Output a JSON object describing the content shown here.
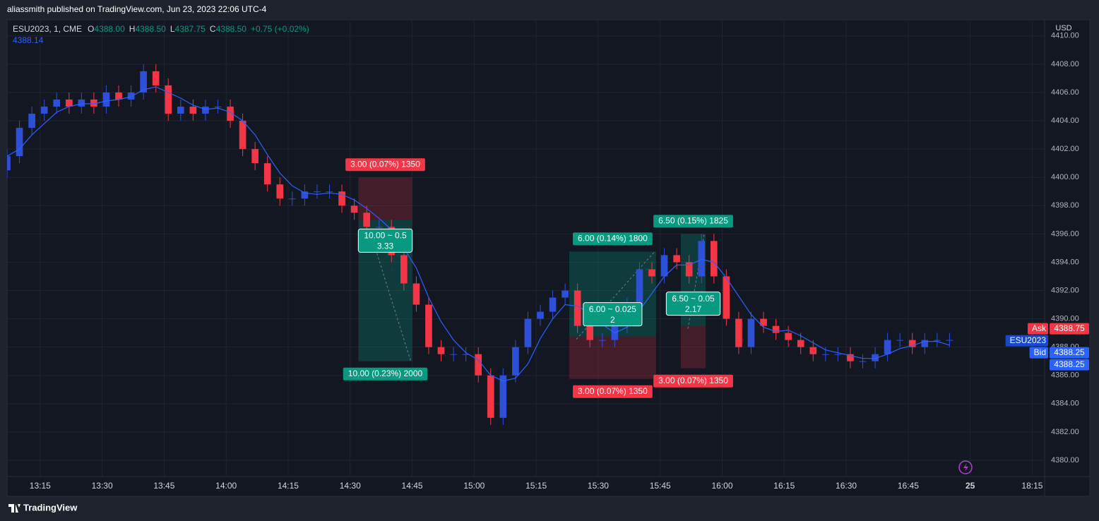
{
  "header": {
    "title": "aliassmith published on TradingView.com, Jun 23, 2023 22:06 UTC-4"
  },
  "footer": {
    "brand": "TradingView"
  },
  "chart_data": {
    "type": "candlestick",
    "legend": {
      "symbol": "ESU2023, 1, CME",
      "ohlc": [
        {
          "label": "O",
          "value": "4388.00"
        },
        {
          "label": "H",
          "value": "4388.50"
        },
        {
          "label": "L",
          "value": "4387.75"
        },
        {
          "label": "C",
          "value": "4388.50"
        }
      ],
      "change": "+0.75 (+0.02%)"
    },
    "axis_unit": "USD",
    "colors": {
      "up": "#2e4fd8",
      "down": "#f23645",
      "ma": "#2962ff",
      "profit": "#089981",
      "loss": "#f23645"
    },
    "grid": true,
    "categories": [
      "13:07",
      "13:10",
      "13:13",
      "13:16",
      "13:19",
      "13:22",
      "13:25",
      "13:28",
      "13:31",
      "13:34",
      "13:37",
      "13:40",
      "13:43",
      "13:46",
      "13:49",
      "13:52",
      "13:55",
      "13:58",
      "14:01",
      "14:04",
      "14:07",
      "14:10",
      "14:13",
      "14:16",
      "14:19",
      "14:22",
      "14:25",
      "14:28",
      "14:31",
      "14:34",
      "14:37",
      "14:40",
      "14:43",
      "14:46",
      "14:49",
      "14:52",
      "14:55",
      "14:58",
      "15:01",
      "15:04",
      "15:07",
      "15:10",
      "15:13",
      "15:16",
      "15:19",
      "15:22",
      "15:25",
      "15:28",
      "15:31",
      "15:34",
      "15:37",
      "15:40",
      "15:43",
      "15:46",
      "15:49",
      "15:52",
      "15:55",
      "15:58",
      "16:01",
      "16:04",
      "16:07",
      "16:10",
      "16:13",
      "16:16",
      "16:19",
      "16:22",
      "16:25",
      "16:28",
      "16:31",
      "16:34",
      "16:37",
      "16:40",
      "16:43",
      "16:46",
      "16:49",
      "16:52",
      "16:55"
    ],
    "open": [
      4400.5,
      4401.5,
      4403.5,
      4404.5,
      4405,
      4405.5,
      4405,
      4405.5,
      4405,
      4406,
      4405.5,
      4406,
      4407.5,
      4406.5,
      4404.5,
      4405,
      4404.5,
      4405,
      4405,
      4404,
      4402,
      4401,
      4399.5,
      4398.5,
      4398.5,
      4399,
      4399,
      4399,
      4398,
      4397.5,
      4396.5,
      4396.5,
      4394.5,
      4392.5,
      4391,
      4388,
      4387.5,
      4387.5,
      4387.5,
      4386,
      4383,
      4386,
      4388,
      4390,
      4390.5,
      4391.5,
      4392,
      4389.5,
      4388.5,
      4388.5,
      4389.5,
      4391,
      4393.5,
      4393,
      4394.5,
      4394,
      4393,
      4395.5,
      4393,
      4390,
      4388,
      4390,
      4389.5,
      4389,
      4388.5,
      4388,
      4387.5,
      4387.5,
      4387.5,
      4387,
      4387,
      4387.5,
      4388.5,
      4388.5,
      4388,
      4388.5,
      4388.5
    ],
    "high": [
      4402,
      4404,
      4405,
      4405.5,
      4406,
      4406,
      4406,
      4406,
      4406.5,
      4406.5,
      4406.5,
      4408,
      4408,
      4407,
      4405.5,
      4405.5,
      4405.5,
      4405.5,
      4405.5,
      4404.5,
      4402.5,
      4401.5,
      4400,
      4399,
      4399.5,
      4399.5,
      4399.5,
      4399.5,
      4398.5,
      4398,
      4397,
      4397,
      4395,
      4393,
      4391.5,
      4388.5,
      4388,
      4388,
      4388,
      4386.5,
      4386.5,
      4388.5,
      4390.5,
      4391,
      4392,
      4392.5,
      4392.5,
      4390,
      4389,
      4390,
      4391.5,
      4394,
      4394,
      4395,
      4395,
      4394.5,
      4396,
      4396,
      4393.5,
      4390.5,
      4390.5,
      4390.5,
      4390,
      4389.5,
      4389,
      4388.5,
      4388,
      4388,
      4388,
      4387.5,
      4388,
      4389,
      4389,
      4389,
      4389,
      4389,
      4389
    ],
    "low": [
      4400,
      4401,
      4403,
      4404,
      4404.5,
      4404.5,
      4404.5,
      4404.5,
      4404.5,
      4405,
      4405,
      4405.5,
      4406,
      4404,
      4404,
      4404,
      4404,
      4404.5,
      4403.5,
      4401.5,
      4400.5,
      4399,
      4398,
      4398,
      4398,
      4398.5,
      4398.5,
      4397.5,
      4397,
      4396,
      4396,
      4394,
      4392,
      4390.5,
      4387.5,
      4387,
      4387,
      4387,
      4385.5,
      4382.5,
      4382.5,
      4385.5,
      4387.5,
      4389.5,
      4390,
      4391,
      4389,
      4388,
      4388,
      4388,
      4389,
      4390.5,
      4392.5,
      4392.5,
      4393.5,
      4392.5,
      4392.5,
      4392.5,
      4389.5,
      4387.5,
      4387.5,
      4389,
      4388.5,
      4388,
      4387.5,
      4387,
      4387,
      4387,
      4386.5,
      4386.5,
      4386.5,
      4387,
      4388,
      4387.5,
      4387.5,
      4388,
      4388
    ],
    "close": [
      4401.5,
      4403.5,
      4404.5,
      4405,
      4405.5,
      4405,
      4405.5,
      4405,
      4406,
      4405.5,
      4406,
      4407.5,
      4406.5,
      4404.5,
      4405,
      4404.5,
      4405,
      4405,
      4404,
      4402,
      4401,
      4399.5,
      4398.5,
      4398.5,
      4399,
      4399,
      4399,
      4398,
      4397.5,
      4396.5,
      4396.5,
      4394.5,
      4392.5,
      4391,
      4388,
      4387.5,
      4387.5,
      4387.5,
      4386,
      4383,
      4386,
      4388,
      4390,
      4390.5,
      4391.5,
      4392,
      4389.5,
      4388.5,
      4388.5,
      4389.5,
      4391,
      4393.5,
      4393,
      4394.5,
      4394,
      4393,
      4395.5,
      4393,
      4390,
      4388,
      4390,
      4389.5,
      4389,
      4388.5,
      4388,
      4387.5,
      4387.5,
      4387.5,
      4387,
      4387,
      4387.5,
      4388.5,
      4388.5,
      4388,
      4388.5,
      4388.5,
      4388.5
    ],
    "ma": [
      4401.5,
      4402,
      4403,
      4403.8,
      4404.6,
      4405,
      4405.2,
      4405.2,
      4405.4,
      4405.5,
      4405.7,
      4406.2,
      4406.4,
      4406,
      4405.6,
      4405.1,
      4404.8,
      4404.9,
      4404.6,
      4404,
      4403,
      4401.6,
      4400.3,
      4399.4,
      4398.9,
      4398.8,
      4398.9,
      4398.8,
      4398.4,
      4397.8,
      4397.1,
      4396.3,
      4395,
      4393.6,
      4391.5,
      4389.8,
      4388.5,
      4387.6,
      4387.1,
      4386,
      4385.6,
      4385.8,
      4386.8,
      4388.6,
      4390,
      4391,
      4390.9,
      4390.4,
      4389.6,
      4389,
      4389.4,
      4390.6,
      4391.8,
      4393,
      4393.8,
      4393.8,
      4394.2,
      4394,
      4392.9,
      4391.6,
      4390.3,
      4389.4,
      4389.1,
      4389.2,
      4388.8,
      4388.3,
      4387.8,
      4387.6,
      4387.4,
      4387.2,
      4387.2,
      4387.5,
      4387.9,
      4388.1,
      4388.4,
      4388.4,
      4388.14
    ],
    "xlim": [
      "13:07",
      "18:18"
    ],
    "xticks": [
      "13:15",
      "13:30",
      "13:45",
      "14:00",
      "14:15",
      "14:30",
      "14:45",
      "15:00",
      "15:15",
      "15:30",
      "15:45",
      "16:00",
      "16:15",
      "16:30",
      "16:45",
      {
        "value": "17:00",
        "label": "25"
      },
      "18:15"
    ],
    "ylim": [
      4378.85,
      4411.04
    ],
    "yticks": [
      {
        "value": 4380,
        "label": "4380.00"
      },
      {
        "value": 4382,
        "label": "4382.00"
      },
      {
        "value": 4384,
        "label": "4384.00"
      },
      {
        "value": 4386,
        "label": "4386.00"
      },
      {
        "value": 4388,
        "label": "4388.00"
      },
      {
        "value": 4390,
        "label": "4390.00"
      },
      {
        "value": 4392,
        "label": "4392.00"
      },
      {
        "value": 4394,
        "label": "4394.00"
      },
      {
        "value": 4396,
        "label": "4396.00"
      },
      {
        "value": 4398,
        "label": "4398.00"
      },
      {
        "value": 4400,
        "label": "4400.00"
      },
      {
        "value": 4402,
        "label": "4402.00"
      },
      {
        "value": 4404,
        "label": "4404.00"
      },
      {
        "value": 4406,
        "label": "4406.00"
      },
      {
        "value": 4408,
        "label": "4408.00"
      },
      {
        "value": 4410,
        "label": "4410.00"
      }
    ],
    "positions": [
      {
        "start": "14:32",
        "end": "14:45",
        "entry": 4397,
        "stop": 4400,
        "target": 4387,
        "target_label": "10.00 (0.23%) 2000",
        "stop_label": "3.00 (0.07%) 1350",
        "ratio_label": "10.00 ~ 0.5",
        "ratio_sub": "3.33"
      },
      {
        "start": "15:23",
        "end": "15:44",
        "entry": 4388.75,
        "stop": 4385.75,
        "target": 4394.75,
        "target_label": "6.00 (0.14%) 1800",
        "stop_label": "3.00 (0.07%) 1350",
        "ratio_label": "6.00 ~ 0.025",
        "ratio_sub": "2"
      },
      {
        "start": "15:50",
        "end": "15:56",
        "entry": 4389.5,
        "stop": 4386.5,
        "target": 4396,
        "target_label": "6.50 (0.15%) 1825",
        "stop_label": "3.00 (0.07%) 1350",
        "ratio_label": "6.50 ~ 0.05",
        "ratio_sub": "2.17"
      }
    ],
    "price_labels": [
      {
        "name": "Ask",
        "value": 4388.75,
        "label": "4388.75",
        "color": "#f23645"
      },
      {
        "name": "ESU2023",
        "value": 4388.5,
        "color": "#2962ff"
      },
      {
        "name": "Bid",
        "value": 4388.25,
        "label": "4388.25",
        "color": "#2962ff"
      },
      {
        "value": 4388.25,
        "label": "4388.25",
        "color": "#2962ff"
      }
    ]
  }
}
